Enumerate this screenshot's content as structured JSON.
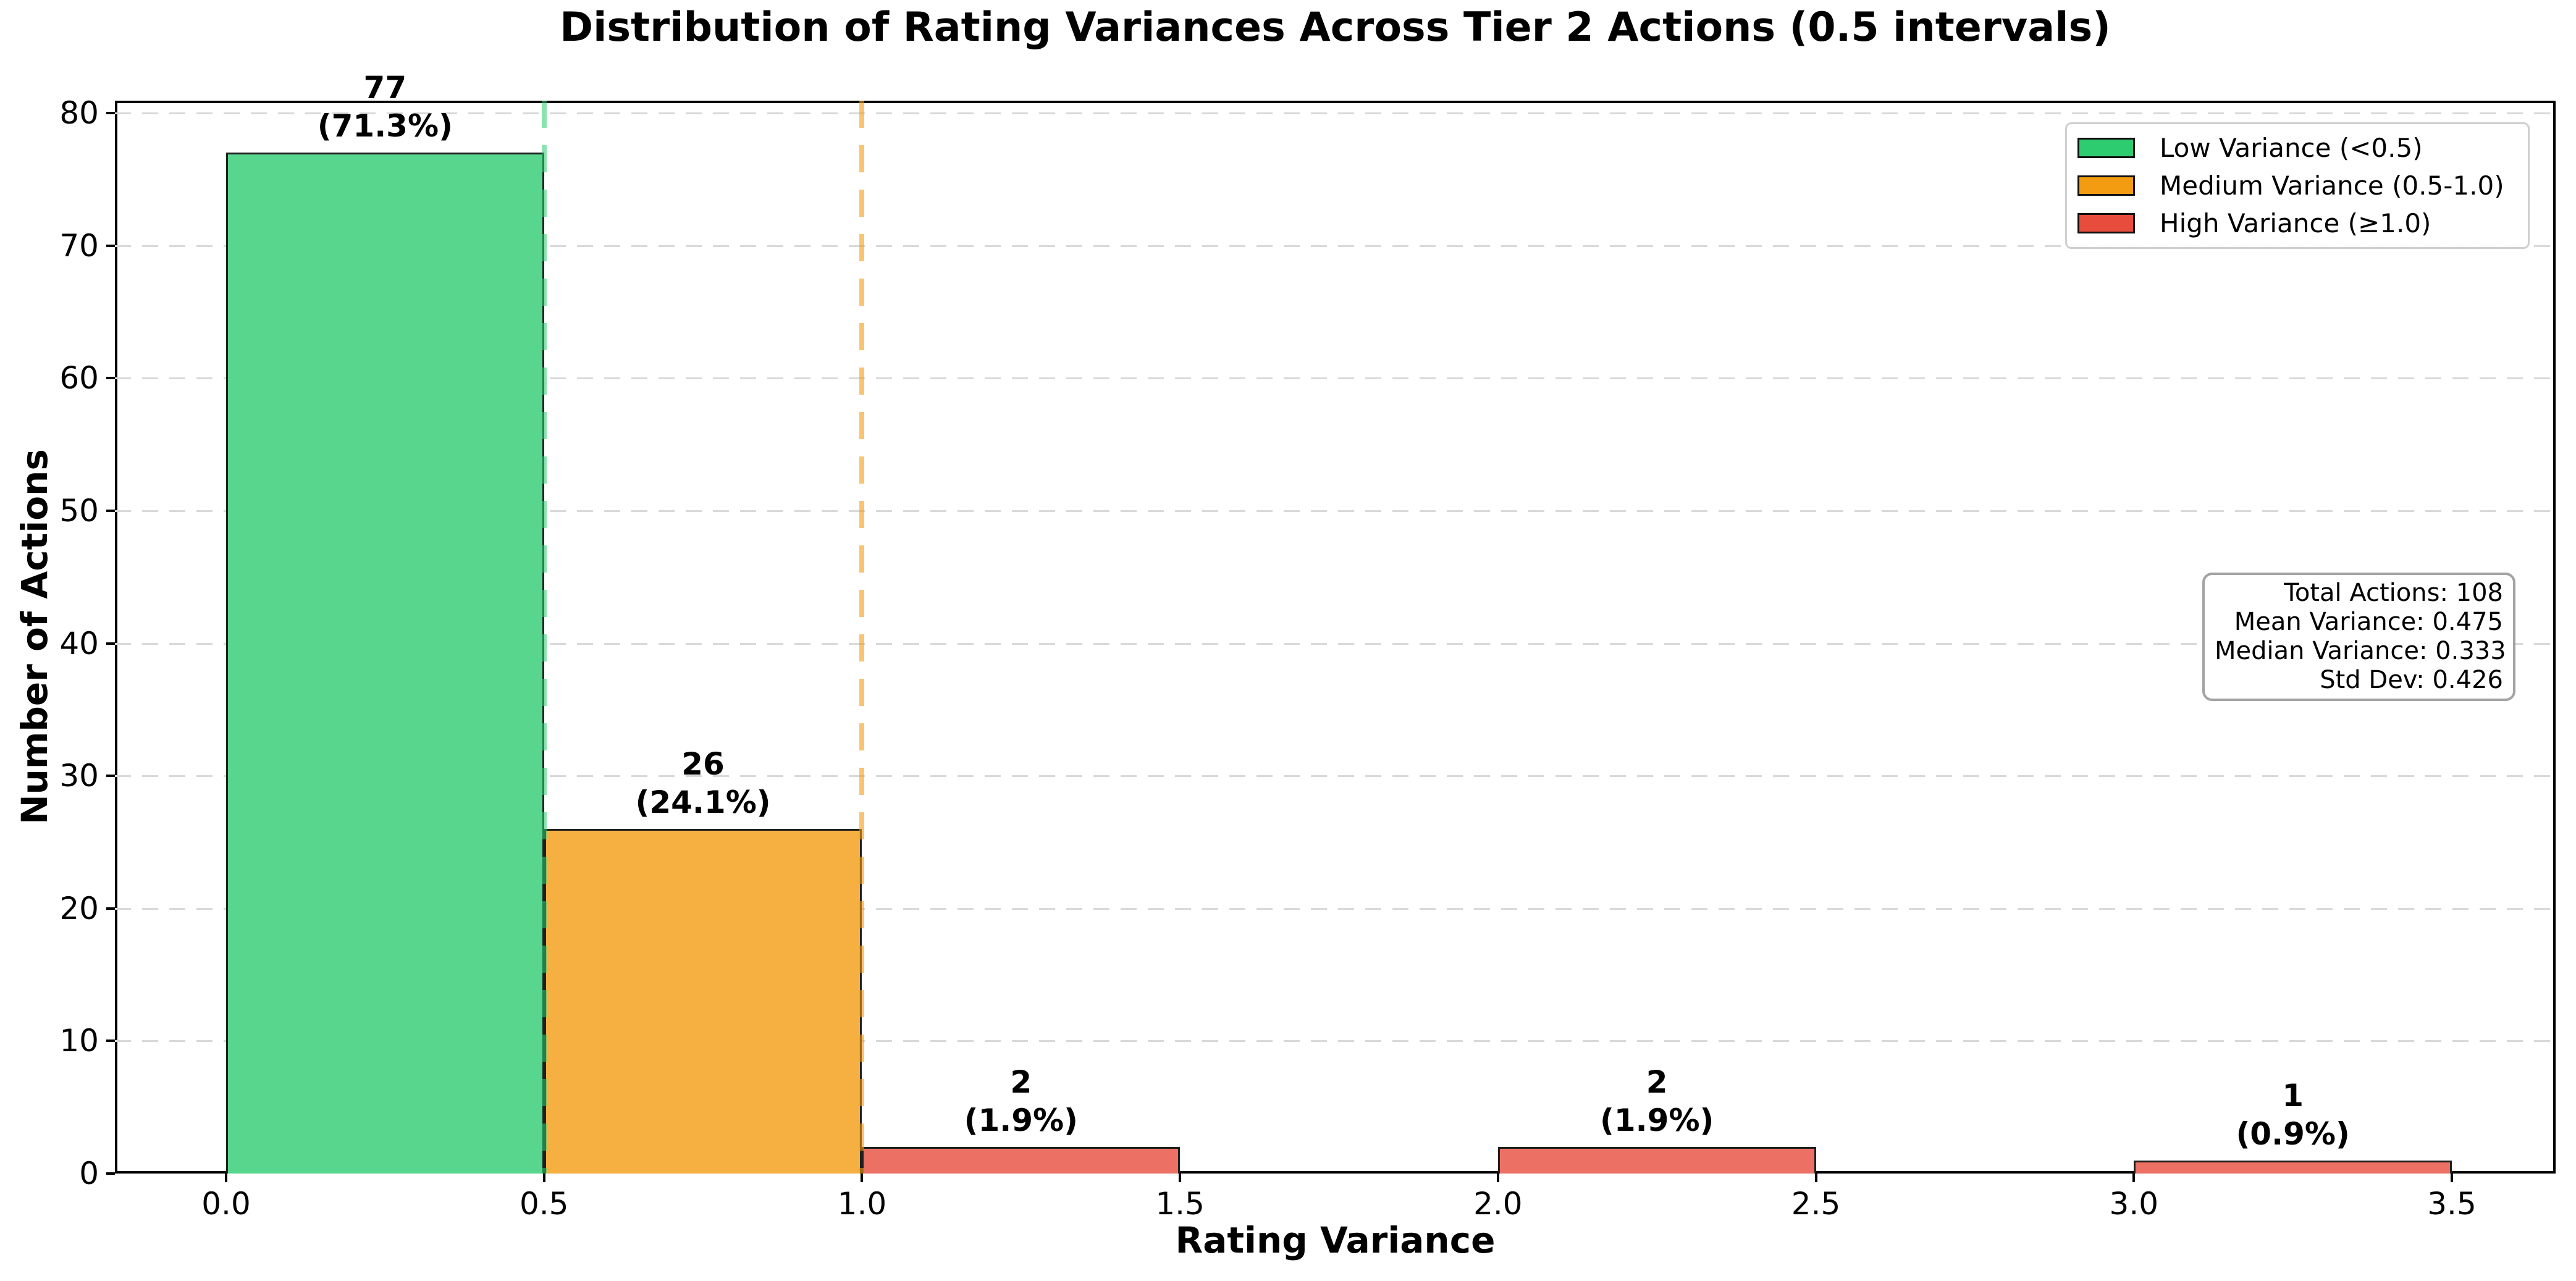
{
  "chart_data": {
    "type": "bar",
    "title": "Distribution of Rating Variances Across Tier 2 Actions (0.5 intervals)",
    "xlabel": "Rating Variance",
    "ylabel": "Number of Actions",
    "xlim": [
      -0.18,
      3.66
    ],
    "ylim": [
      0,
      80.9
    ],
    "x_ticks": [
      "0.0",
      "0.5",
      "1.0",
      "1.5",
      "2.0",
      "2.5",
      "3.0",
      "3.5"
    ],
    "y_ticks": [
      0,
      10,
      20,
      30,
      40,
      50,
      60,
      70,
      80
    ],
    "grid": "horizontal-dashed",
    "bin_width": 0.5,
    "bins": [
      {
        "x0": 0.0,
        "x1": 0.5,
        "count": 77,
        "pct_label": "(71.3%)",
        "category": "low"
      },
      {
        "x0": 0.5,
        "x1": 1.0,
        "count": 26,
        "pct_label": "(24.1%)",
        "category": "medium"
      },
      {
        "x0": 1.0,
        "x1": 1.5,
        "count": 2,
        "pct_label": "(1.9%)",
        "category": "high"
      },
      {
        "x0": 2.0,
        "x1": 2.5,
        "count": 2,
        "pct_label": "(1.9%)",
        "category": "high"
      },
      {
        "x0": 3.0,
        "x1": 3.5,
        "count": 1,
        "pct_label": "(0.9%)",
        "category": "high"
      }
    ],
    "palette": {
      "low": {
        "fill": "#58d68d",
        "solid": "#2ecc71"
      },
      "medium": {
        "fill": "#f5b041",
        "solid": "#f39c12"
      },
      "high": {
        "fill": "#ec7063",
        "solid": "#e74c3c"
      }
    },
    "edge_color": "#1f1f1f",
    "reference_lines": [
      {
        "x": 0.5,
        "color": "rgba(46,204,113,0.55)"
      },
      {
        "x": 1.0,
        "color": "rgba(243,156,18,0.60)"
      }
    ],
    "legend": {
      "position": "top-right",
      "entries": [
        {
          "label": "Low Variance (<0.5)",
          "category": "low"
        },
        {
          "label": "Medium Variance (0.5-1.0)",
          "category": "medium"
        },
        {
          "label": "High Variance (≥1.0)",
          "category": "high"
        }
      ]
    },
    "stats_box": {
      "lines": [
        "Total Actions: 108",
        "Mean Variance: 0.475",
        "Median Variance: 0.333",
        "Std Dev: 0.426"
      ]
    }
  }
}
